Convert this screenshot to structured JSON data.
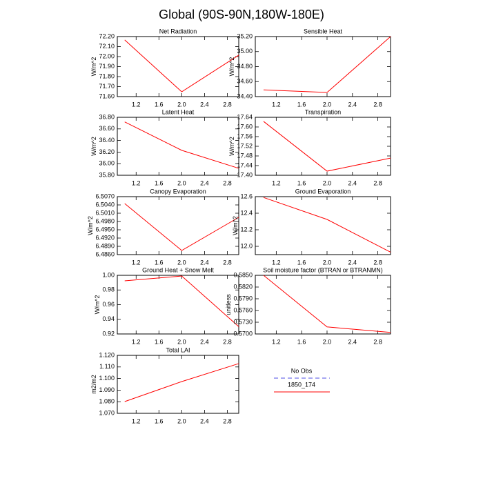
{
  "title": "Global (90S-90N,180W-180E)",
  "legend": {
    "entries": [
      {
        "name": "No Obs",
        "color": "#8888ee",
        "dashed": true
      },
      {
        "name": "1850_174",
        "color": "#ff0000",
        "dashed": false
      }
    ]
  },
  "chart_data": [
    {
      "type": "line",
      "title": "Net Radiation",
      "ylabel": "W/m^2",
      "x": [
        1,
        2,
        3
      ],
      "values": [
        72.166,
        71.648,
        72.014
      ],
      "color": "#ff0000",
      "xlim": [
        0.87,
        3
      ],
      "xticks": [
        1.2,
        1.6,
        {
          "value": 2,
          "label": "2.0"
        },
        2.4,
        2.8
      ],
      "ylim": [
        71.6,
        72.2
      ],
      "yticks": [
        {
          "value": 71.6,
          "label": "71.60"
        },
        {
          "value": 71.7,
          "label": "71.70"
        },
        {
          "value": 71.8,
          "label": "71.80"
        },
        {
          "value": 71.9,
          "label": "71.90"
        },
        {
          "value": 72,
          "label": "72.00"
        },
        {
          "value": 72.1,
          "label": "72.10"
        },
        {
          "value": 72.2,
          "label": "72.20"
        }
      ]
    },
    {
      "type": "line",
      "title": "Sensible Heat",
      "ylabel": "W/m^2",
      "x": [
        1,
        2,
        3
      ],
      "values": [
        34.49,
        34.455,
        35.2
      ],
      "color": "#ff0000",
      "xlim": [
        0.87,
        3
      ],
      "xticks": [
        1.2,
        1.6,
        {
          "value": 2,
          "label": "2.0"
        },
        2.4,
        2.8
      ],
      "ylim": [
        34.4,
        35.2
      ],
      "yticks": [
        {
          "value": 34.4,
          "label": "34.40"
        },
        {
          "value": 34.6,
          "label": "34.60"
        },
        {
          "value": 34.8,
          "label": "34.80"
        },
        {
          "value": 35,
          "label": "35.00"
        },
        {
          "value": 35.2,
          "label": "35.20"
        }
      ]
    },
    {
      "type": "line",
      "title": "Latent Heat",
      "ylabel": "W/m^2",
      "x": [
        1,
        2,
        3
      ],
      "values": [
        36.72,
        36.23,
        35.92
      ],
      "color": "#ff0000",
      "xlim": [
        0.87,
        3
      ],
      "xticks": [
        1.2,
        1.6,
        {
          "value": 2,
          "label": "2.0"
        },
        2.4,
        2.8
      ],
      "ylim": [
        35.8,
        36.8
      ],
      "yticks": [
        {
          "value": 35.8,
          "label": "35.80"
        },
        {
          "value": 36,
          "label": "36.00"
        },
        {
          "value": 36.2,
          "label": "36.20"
        },
        {
          "value": 36.4,
          "label": "36.40"
        },
        {
          "value": 36.6,
          "label": "36.60"
        },
        {
          "value": 36.8,
          "label": "36.80"
        }
      ]
    },
    {
      "type": "line",
      "title": "Transpiration",
      "ylabel": "W/m^2",
      "x": [
        1,
        2,
        3
      ],
      "values": [
        17.623,
        17.417,
        17.471
      ],
      "color": "#ff0000",
      "xlim": [
        0.87,
        3
      ],
      "xticks": [
        1.2,
        1.6,
        {
          "value": 2,
          "label": "2.0"
        },
        2.4,
        2.8
      ],
      "ylim": [
        17.4,
        17.64
      ],
      "yticks": [
        {
          "value": 17.4,
          "label": "17.40"
        },
        17.44,
        17.48,
        17.52,
        17.56,
        {
          "value": 17.6,
          "label": "17.60"
        },
        17.64
      ]
    },
    {
      "type": "line",
      "title": "Canopy Evaporation",
      "ylabel": "W/m^2",
      "x": [
        1,
        2,
        3
      ],
      "values": [
        6.5045,
        6.4875,
        6.4995
      ],
      "color": "#ff0000",
      "xlim": [
        0.87,
        3
      ],
      "xticks": [
        1.2,
        1.6,
        {
          "value": 2,
          "label": "2.0"
        },
        2.4,
        2.8
      ],
      "ylim": [
        6.486,
        6.507
      ],
      "yticks": [
        {
          "value": 6.486,
          "label": "6.4860"
        },
        {
          "value": 6.489,
          "label": "6.4890"
        },
        {
          "value": 6.492,
          "label": "6.4920"
        },
        {
          "value": 6.495,
          "label": "6.4950"
        },
        {
          "value": 6.498,
          "label": "6.4980"
        },
        {
          "value": 6.501,
          "label": "6.5010"
        },
        {
          "value": 6.504,
          "label": "6.5040"
        },
        {
          "value": 6.507,
          "label": "6.5070"
        }
      ]
    },
    {
      "type": "line",
      "title": "Ground Evaporation",
      "ylabel": "W/m^2",
      "x": [
        1,
        2,
        3
      ],
      "values": [
        12.59,
        12.325,
        11.93
      ],
      "color": "#ff0000",
      "xlim": [
        0.87,
        3
      ],
      "xticks": [
        1.2,
        1.6,
        {
          "value": 2,
          "label": "2.0"
        },
        2.4,
        2.8
      ],
      "ylim": [
        11.9,
        12.6
      ],
      "yticks": [
        {
          "value": 12,
          "label": "12.0"
        },
        12.2,
        12.4,
        12.6
      ]
    },
    {
      "type": "line",
      "title": "Ground Heat + Snow Melt",
      "ylabel": "W/m^2",
      "x": [
        1,
        2,
        3
      ],
      "values": [
        0.9925,
        0.999,
        0.93
      ],
      "color": "#ff0000",
      "xlim": [
        0.87,
        3
      ],
      "xticks": [
        1.2,
        1.6,
        {
          "value": 2,
          "label": "2.0"
        },
        2.4,
        2.8
      ],
      "ylim": [
        0.92,
        1
      ],
      "yticks": [
        0.92,
        0.94,
        0.96,
        0.98,
        {
          "value": 1,
          "label": "1.00"
        }
      ]
    },
    {
      "type": "line",
      "title": "Soil moisture factor (BTRAN or BTRANMN)",
      "ylabel": "unitless",
      "x": [
        1,
        2,
        3
      ],
      "values": [
        0.585,
        0.5718,
        0.5704
      ],
      "color": "#ff0000",
      "xlim": [
        0.87,
        3
      ],
      "xticks": [
        1.2,
        1.6,
        {
          "value": 2,
          "label": "2.0"
        },
        2.4,
        2.8
      ],
      "ylim": [
        0.57,
        0.585
      ],
      "yticks": [
        {
          "value": 0.57,
          "label": "0.5700"
        },
        {
          "value": 0.573,
          "label": "0.5730"
        },
        {
          "value": 0.576,
          "label": "0.5760"
        },
        {
          "value": 0.579,
          "label": "0.5790"
        },
        {
          "value": 0.582,
          "label": "0.5820"
        },
        {
          "value": 0.585,
          "label": "0.5850"
        }
      ]
    },
    {
      "type": "line",
      "title": "Total LAI",
      "ylabel": "m2/m2",
      "x": [
        1,
        2,
        3
      ],
      "values": [
        1.0801,
        1.0974,
        1.1129
      ],
      "color": "#ff0000",
      "xlim": [
        0.87,
        3
      ],
      "xticks": [
        1.2,
        1.6,
        {
          "value": 2,
          "label": "2.0"
        },
        2.4,
        2.8
      ],
      "ylim": [
        1.07,
        1.12
      ],
      "yticks": [
        {
          "value": 1.07,
          "label": "1.070"
        },
        {
          "value": 1.08,
          "label": "1.080"
        },
        {
          "value": 1.09,
          "label": "1.090"
        },
        {
          "value": 1.1,
          "label": "1.100"
        },
        {
          "value": 1.11,
          "label": "1.110"
        },
        {
          "value": 1.12,
          "label": "1.120"
        }
      ]
    }
  ]
}
